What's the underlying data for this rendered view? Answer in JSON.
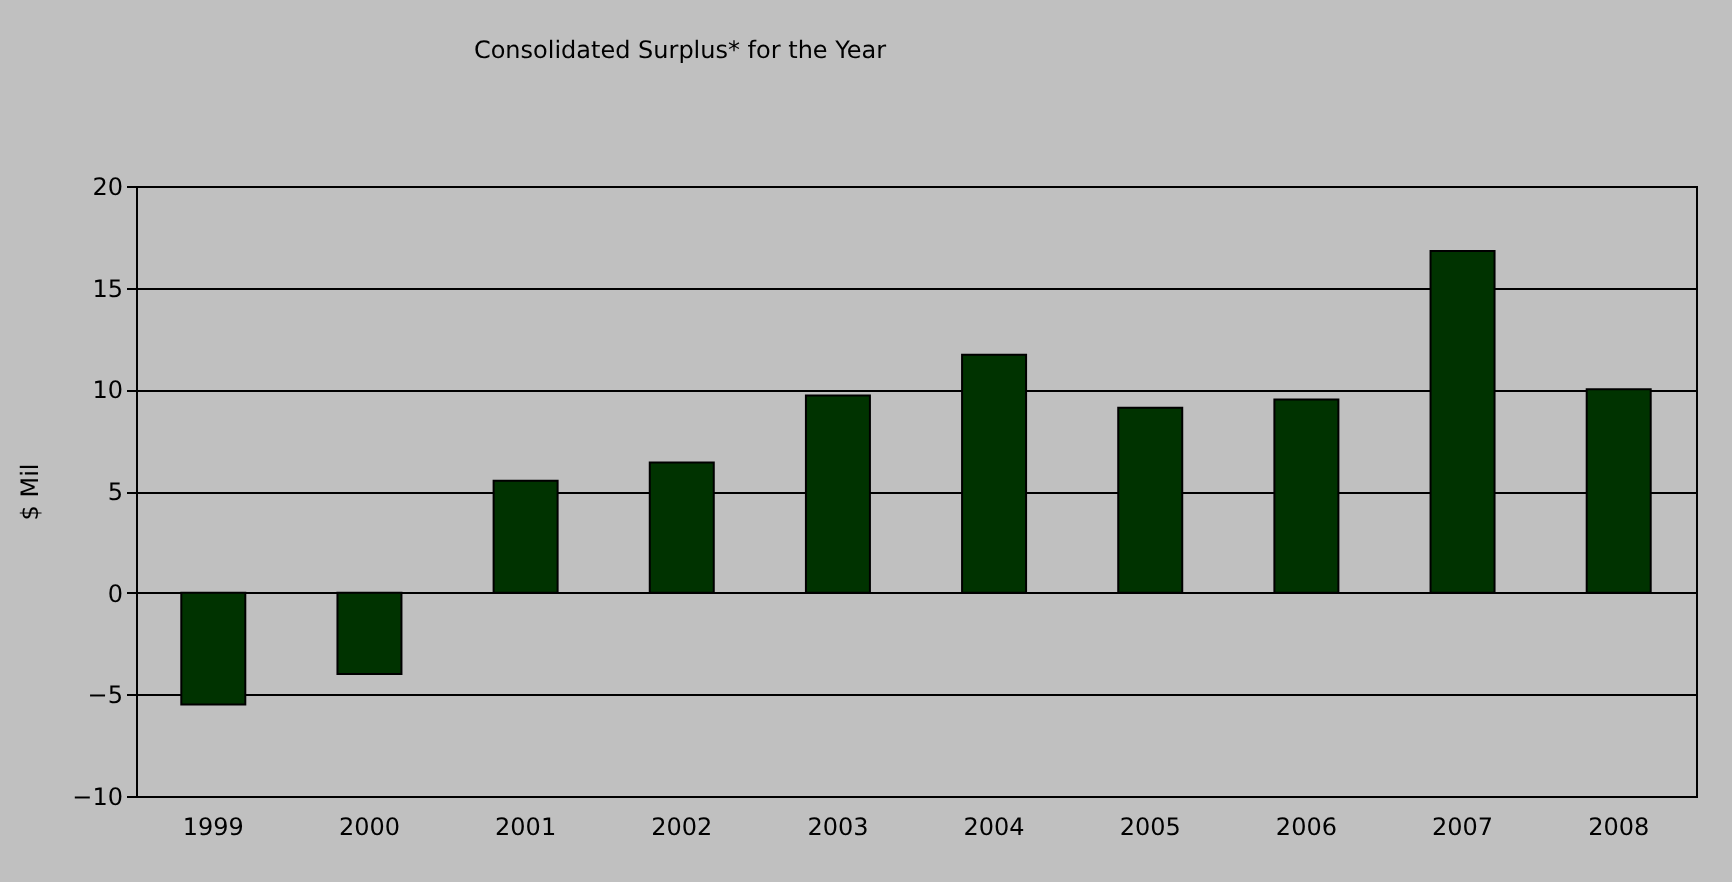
{
  "chart_data": {
    "type": "bar",
    "title": "Consolidated Surplus* for the Year",
    "ylabel": "$ Mil",
    "categories": [
      "1999",
      "2000",
      "2001",
      "2002",
      "2003",
      "2004",
      "2005",
      "2006",
      "2007",
      "2008"
    ],
    "values": [
      -5.5,
      -4.0,
      5.5,
      6.4,
      9.7,
      11.7,
      9.1,
      9.5,
      16.8,
      10.0
    ],
    "color": "#003300",
    "ylim": [
      -10,
      20
    ],
    "yticks": [
      -10,
      -5,
      0,
      5,
      10,
      15,
      20
    ],
    "grid": "y",
    "legend": false
  }
}
